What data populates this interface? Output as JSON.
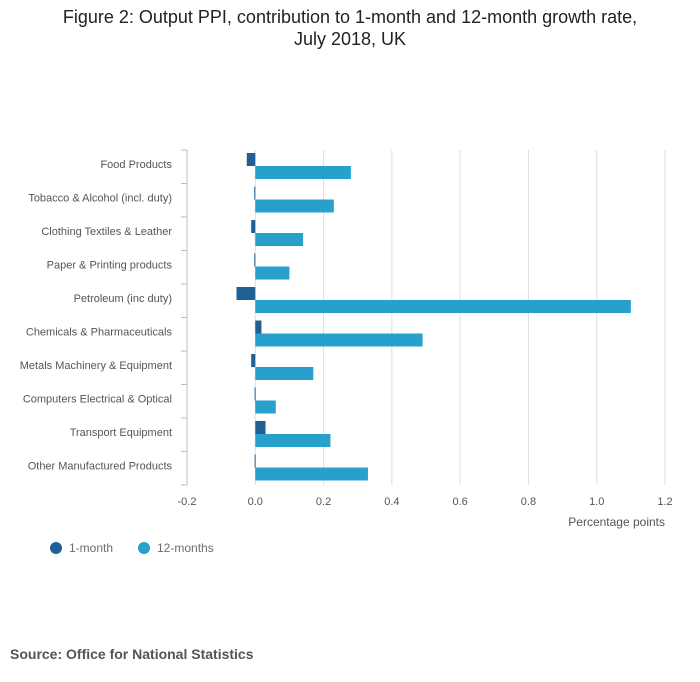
{
  "chart_data": {
    "type": "bar",
    "orientation": "horizontal",
    "title_line1": "Figure 2: Output PPI, contribution to 1-month and 12-month growth rate,",
    "title_line2": "July 2018, UK",
    "categories": [
      "Food Products",
      "Tobacco & Alcohol (incl. duty)",
      "Clothing Textiles & Leather",
      "Paper & Printing products",
      "Petroleum (inc duty)",
      "Chemicals & Pharmaceuticals",
      "Metals Machinery & Equipment",
      "Computers Electrical & Optical",
      "Transport Equipment",
      "Other Manufactured Products"
    ],
    "series": [
      {
        "name": "1-month",
        "color": "#206095",
        "values": [
          -0.025,
          -0.003,
          -0.012,
          -0.003,
          -0.055,
          0.018,
          -0.012,
          -0.002,
          0.03,
          -0.002
        ]
      },
      {
        "name": "12-months",
        "color": "#27a0cc",
        "values": [
          0.28,
          0.23,
          0.14,
          0.1,
          1.1,
          0.49,
          0.17,
          0.06,
          0.22,
          0.33
        ]
      }
    ],
    "xlim": [
      -0.2,
      1.2
    ],
    "xticks": [
      "-0.2",
      "0.0",
      "0.2",
      "0.4",
      "0.6",
      "0.8",
      "1.0",
      "1.2"
    ],
    "xlabel": "Percentage points",
    "legend_position": "bottom-left",
    "grid": true
  },
  "source": "Source: Office for National Statistics"
}
